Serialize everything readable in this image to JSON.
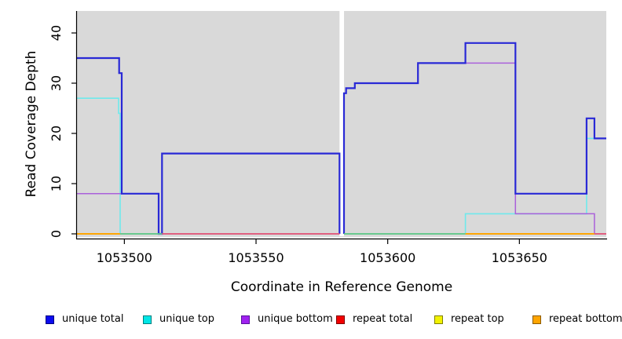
{
  "figure": {
    "background": "#ffffff",
    "panel_background": "#d9d9d9",
    "axis_color": "#000000"
  },
  "axes": {
    "xlabel": "Coordinate in Reference Genome",
    "ylabel": "Read Coverage Depth",
    "x_ticks": [
      {
        "value": 1053500,
        "label": "1053500"
      },
      {
        "value": 1053550,
        "label": "1053550"
      },
      {
        "value": 1053600,
        "label": "1053600"
      },
      {
        "value": 1053650,
        "label": "1053650"
      }
    ],
    "y_ticks": [
      {
        "value": 0,
        "label": "0"
      },
      {
        "value": 10,
        "label": "10"
      },
      {
        "value": 20,
        "label": "20"
      },
      {
        "value": 30,
        "label": "30"
      },
      {
        "value": 40,
        "label": "40"
      }
    ]
  },
  "chart_data": {
    "type": "line",
    "step": true,
    "title": "",
    "xlabel": "Coordinate in Reference Genome",
    "ylabel": "Read Coverage Depth",
    "xlim": [
      1053482,
      1053683
    ],
    "ylim": [
      -0.625,
      44.375
    ],
    "grid": false,
    "gap": {
      "x0": 1053581.7,
      "x1": 1053583.4,
      "color": "#ffffff",
      "note": "white masked region, no data"
    },
    "series": [
      {
        "name": "unique total",
        "color": "#2929d6",
        "width": 2.2,
        "draw_order": 4,
        "runs": [
          {
            "end_at_zero": true,
            "steps": [
              [
                1053482,
                1053498,
                35
              ],
              [
                1053498,
                1053499,
                32
              ],
              [
                1053499,
                1053513,
                8
              ],
              [
                1053513,
                1053514.3,
                0
              ],
              [
                1053514.3,
                1053581.7,
                16
              ]
            ]
          },
          {
            "start_at_zero": true,
            "steps": [
              [
                1053583.4,
                1053584.2,
                28
              ],
              [
                1053584.2,
                1053587.5,
                29
              ],
              [
                1053587.5,
                1053611.5,
                30
              ],
              [
                1053611.5,
                1053629.5,
                34
              ],
              [
                1053629.5,
                1053648.5,
                38
              ],
              [
                1053648.5,
                1053675.5,
                8
              ],
              [
                1053675.5,
                1053678.5,
                23
              ],
              [
                1053678.5,
                1053683,
                19
              ]
            ]
          }
        ]
      },
      {
        "name": "unique top",
        "color": "#6fe9ec",
        "width": 1.6,
        "draw_order": 2,
        "runs": [
          {
            "end_at_zero": true,
            "steps": [
              [
                1053482,
                1053497.8,
                27
              ],
              [
                1053497.8,
                1053498.4,
                24
              ],
              [
                1053498.4,
                1053514.3,
                0
              ],
              [
                1053514.3,
                1053581.7,
                16
              ]
            ]
          },
          {
            "steps": [
              [
                1053583.4,
                1053629.5,
                0
              ],
              [
                1053629.5,
                1053675.5,
                4
              ],
              [
                1053675.5,
                1053683,
                19
              ]
            ]
          }
        ]
      },
      {
        "name": "unique bottom",
        "color": "#aa60da",
        "width": 1.5,
        "draw_order": 3,
        "runs": [
          {
            "steps": [
              [
                1053482,
                1053513,
                8
              ],
              [
                1053513,
                1053581.7,
                0
              ]
            ]
          },
          {
            "start_at_zero": true,
            "steps": [
              [
                1053583.4,
                1053584.2,
                28
              ],
              [
                1053584.2,
                1053587.5,
                29
              ],
              [
                1053587.5,
                1053611.5,
                30
              ],
              [
                1053611.5,
                1053648.5,
                34
              ],
              [
                1053648.5,
                1053678.5,
                4
              ],
              [
                1053678.5,
                1053683,
                0
              ]
            ]
          }
        ]
      },
      {
        "name": "repeat total",
        "color": "#e03c3c",
        "width": 1.5,
        "draw_order": 1,
        "runs": [
          {
            "steps": [
              [
                1053482,
                1053581.7,
                0
              ]
            ]
          },
          {
            "steps": [
              [
                1053583.4,
                1053683,
                0
              ]
            ]
          }
        ]
      },
      {
        "name": "repeat top",
        "color": "#e8e800",
        "width": 1.5,
        "draw_order": 1,
        "runs": [
          {
            "steps": [
              [
                1053482,
                1053581.7,
                0
              ]
            ]
          },
          {
            "steps": [
              [
                1053583.4,
                1053683,
                0
              ]
            ]
          }
        ]
      },
      {
        "name": "repeat bottom",
        "color": "#ffa500",
        "width": 1.5,
        "draw_order": 1,
        "runs": [
          {
            "steps": [
              [
                1053482,
                1053581.7,
                0
              ]
            ]
          },
          {
            "steps": [
              [
                1053583.4,
                1053683,
                0
              ]
            ]
          }
        ]
      }
    ],
    "baseline_segments": [
      {
        "x0": 1053482,
        "x1": 1053498.4,
        "color": "#ffa400"
      },
      {
        "x0": 1053498.4,
        "x1": 1053514.3,
        "color": "#5fc98f"
      },
      {
        "x0": 1053514.3,
        "x1": 1053581.7,
        "color": "#e25b80"
      },
      {
        "x0": 1053583.4,
        "x1": 1053629.5,
        "color": "#5fc98f"
      },
      {
        "x0": 1053629.5,
        "x1": 1053678.5,
        "color": "#ffa400"
      },
      {
        "x0": 1053678.5,
        "x1": 1053683,
        "color": "#e25b80"
      }
    ]
  },
  "legend": {
    "items": [
      {
        "label": "unique total",
        "fill": "#0b0bef",
        "border": "#00007f"
      },
      {
        "label": "unique top",
        "fill": "#00e6e6",
        "border": "#007f7f"
      },
      {
        "label": "unique bottom",
        "fill": "#a021f0",
        "border": "#57129b"
      },
      {
        "label": "repeat total",
        "fill": "#f20000",
        "border": "#7f0000"
      },
      {
        "label": "repeat top",
        "fill": "#f2f200",
        "border": "#7f7f00"
      },
      {
        "label": "repeat bottom",
        "fill": "#ffa500",
        "border": "#8b5a00"
      }
    ]
  }
}
